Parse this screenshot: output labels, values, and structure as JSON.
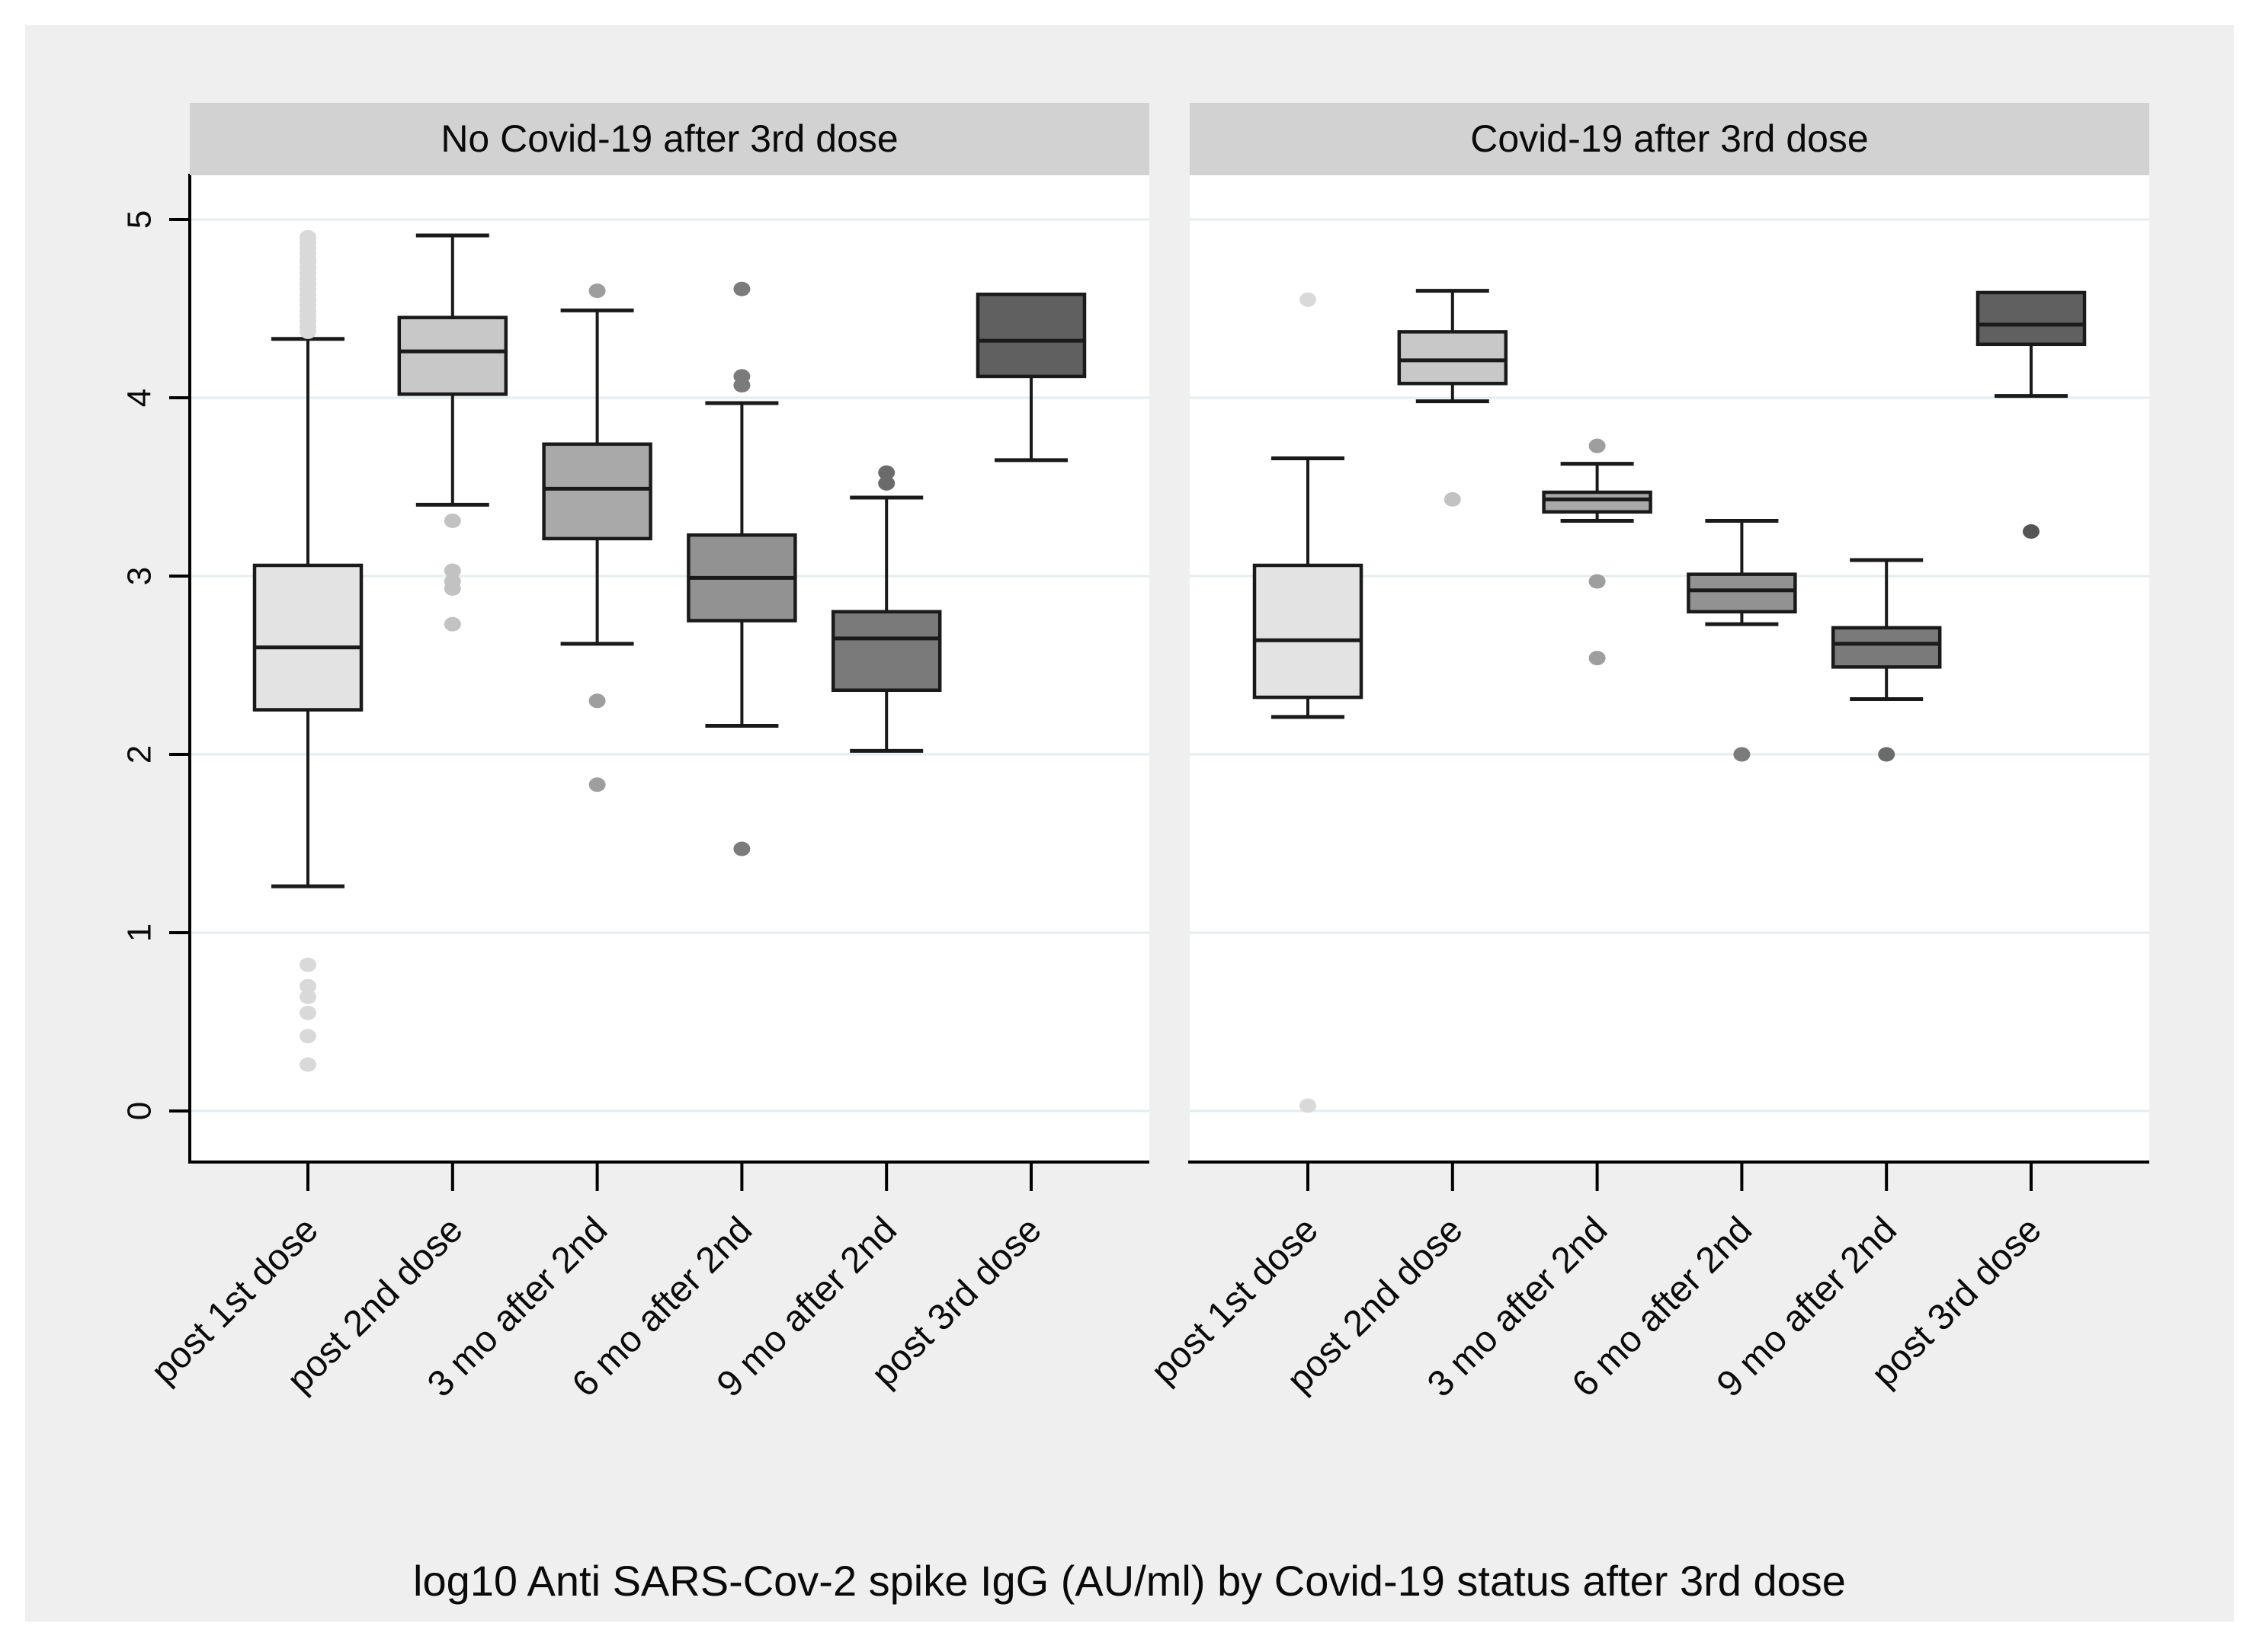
{
  "chart_data": {
    "type": "box",
    "title": "log10 Anti SARS-Cov-2 spike IgG (AU/ml) by Covid-19 status after 3rd dose",
    "ylabel": "",
    "ylim": [
      -0.29,
      5.25
    ],
    "yticks": [
      0,
      1,
      2,
      3,
      4,
      5
    ],
    "grid": true,
    "legend_position": "none",
    "categories": [
      "post 1st dose",
      "post 2nd dose",
      "3 mo after 2nd",
      "6 mo after 2nd",
      "9 mo after 2nd",
      "post 3rd dose"
    ],
    "box_fill_colors": [
      "#e3e3e3",
      "#c8c8c8",
      "#a9a9a9",
      "#929292",
      "#7a7a7a",
      "#606060"
    ],
    "outlier_colors": [
      "#d9d9d9",
      "#c2c2c2",
      "#9e9e9e",
      "#7b7b7b",
      "#6b6b6b",
      "#555555"
    ],
    "panels": [
      {
        "title": "No Covid-19 after 3rd dose",
        "boxes": [
          {
            "category": "post 1st dose",
            "whisker_low": 1.26,
            "q1": 2.25,
            "median": 2.6,
            "q3": 3.06,
            "whisker_high": 4.33,
            "outliers_high": [
              4.9,
              4.87,
              4.84,
              4.81,
              4.78,
              4.76,
              4.73,
              4.7,
              4.67,
              4.64,
              4.61,
              4.58,
              4.55,
              4.52,
              4.49,
              4.46,
              4.43,
              4.4,
              4.37
            ],
            "outliers_low": [
              0.82,
              0.7,
              0.64,
              0.55,
              0.42,
              0.26
            ]
          },
          {
            "category": "post 2nd dose",
            "whisker_low": 3.4,
            "q1": 4.02,
            "median": 4.26,
            "q3": 4.45,
            "whisker_high": 4.91,
            "outliers_high": [],
            "outliers_low": [
              3.31,
              3.03,
              2.97,
              2.93,
              2.73
            ]
          },
          {
            "category": "3 mo after 2nd",
            "whisker_low": 2.62,
            "q1": 3.21,
            "median": 3.49,
            "q3": 3.74,
            "whisker_high": 4.49,
            "outliers_high": [
              4.6
            ],
            "outliers_low": [
              2.3,
              1.83
            ]
          },
          {
            "category": "6 mo after 2nd",
            "whisker_low": 2.16,
            "q1": 2.75,
            "median": 2.99,
            "q3": 3.23,
            "whisker_high": 3.97,
            "outliers_high": [
              4.61,
              4.12,
              4.07
            ],
            "outliers_low": [
              1.47
            ]
          },
          {
            "category": "9 mo after 2nd",
            "whisker_low": 2.02,
            "q1": 2.36,
            "median": 2.65,
            "q3": 2.8,
            "whisker_high": 3.44,
            "outliers_high": [
              3.58,
              3.52
            ],
            "outliers_low": []
          },
          {
            "category": "post 3rd dose",
            "whisker_low": 3.65,
            "q1": 4.12,
            "median": 4.32,
            "q3": 4.58,
            "whisker_high": null,
            "outliers_high": [],
            "outliers_low": []
          }
        ]
      },
      {
        "title": "Covid-19 after 3rd dose",
        "boxes": [
          {
            "category": "post 1st dose",
            "whisker_low": 2.21,
            "q1": 2.32,
            "median": 2.64,
            "q3": 3.06,
            "whisker_high": 3.66,
            "outliers_high": [
              4.55
            ],
            "outliers_low": [
              0.03
            ]
          },
          {
            "category": "post 2nd dose",
            "whisker_low": 3.98,
            "q1": 4.08,
            "median": 4.21,
            "q3": 4.37,
            "whisker_high": 4.6,
            "outliers_high": [],
            "outliers_low": [
              3.43
            ]
          },
          {
            "category": "3 mo after 2nd",
            "whisker_low": 3.31,
            "q1": 3.36,
            "median": 3.43,
            "q3": 3.47,
            "whisker_high": 3.63,
            "outliers_high": [
              3.73
            ],
            "outliers_low": [
              2.97,
              2.54
            ]
          },
          {
            "category": "6 mo after 2nd",
            "whisker_low": 2.73,
            "q1": 2.8,
            "median": 2.92,
            "q3": 3.01,
            "whisker_high": 3.31,
            "outliers_high": [],
            "outliers_low": [
              2.0
            ]
          },
          {
            "category": "9 mo after 2nd",
            "whisker_low": 2.31,
            "q1": 2.49,
            "median": 2.62,
            "q3": 2.71,
            "whisker_high": 3.09,
            "outliers_high": [],
            "outliers_low": [
              2.0
            ]
          },
          {
            "category": "post 3rd dose",
            "whisker_low": 4.01,
            "q1": 4.3,
            "median": 4.41,
            "q3": 4.59,
            "whisker_high": null,
            "outliers_high": [],
            "outliers_low": [
              3.25
            ]
          }
        ]
      }
    ],
    "styles": {
      "canvas_bg": "#efefef",
      "plot_bg": "#ffffff",
      "header_bg": "#d2d2d2",
      "grid_color": "#e3eef0",
      "axis_color": "#000000",
      "box_border": "#1a1a1a",
      "text_color": "#0a0a0a"
    }
  }
}
